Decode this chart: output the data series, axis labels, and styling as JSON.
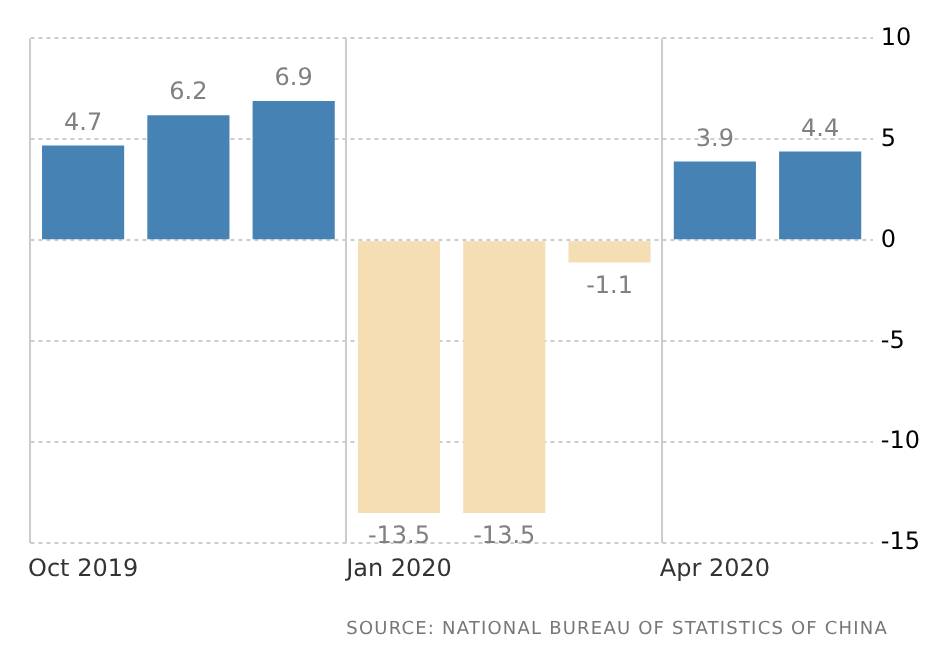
{
  "chart_data": {
    "type": "bar",
    "categories": [
      "Oct 2019",
      null,
      null,
      "Jan 2020",
      null,
      null,
      "Apr 2020",
      null
    ],
    "values": [
      4.7,
      6.2,
      6.9,
      -13.5,
      -13.5,
      -1.1,
      3.9,
      4.4
    ],
    "colors": [
      "#4682b4",
      "#4682b4",
      "#4682b4",
      "#f5deb3",
      "#f5deb3",
      "#f5deb3",
      "#4682b4",
      "#4682b4"
    ],
    "ylim": [
      -15,
      10
    ],
    "yticks": [
      -15,
      -10,
      -5,
      0,
      5,
      10
    ],
    "grid": true,
    "legend": false,
    "data_labels": true,
    "annotations": [
      "SOURCE: NATIONAL BUREAU OF STATISTICS OF CHINA"
    ]
  }
}
